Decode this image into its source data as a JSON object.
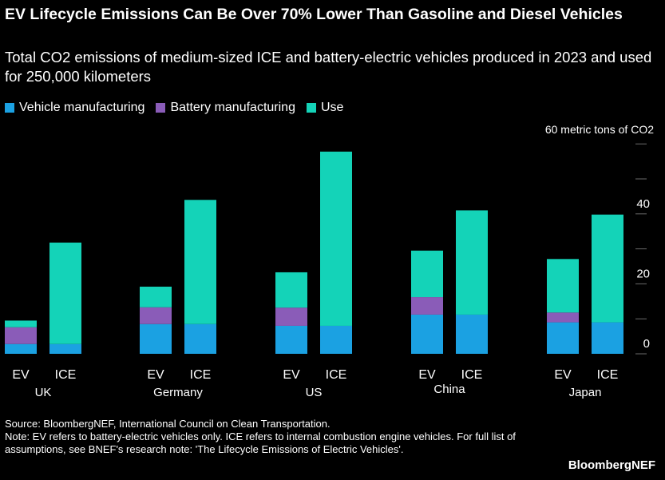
{
  "title": "EV Lifecycle Emissions Can Be Over 70% Lower Than Gasoline and Diesel Vehicles",
  "subtitle": "Total CO2 emissions of medium-sized ICE and battery-electric vehicles produced in 2023 and used for 250,000 kilometers",
  "unit_label": "60 metric tons of CO2",
  "footer": {
    "source": "Source: BloombergNEF, International Council on Clean Transportation.",
    "note": "Note: EV refers to battery-electric vehicles only. ICE refers to internal combustion engine vehicles. For full list of assumptions, see BNEF's research note: 'The Lifecycle Emissions of Electric Vehicles'."
  },
  "brand": "BloombergNEF",
  "colors": {
    "background": "#000000",
    "vehicle": "#1ba1e2",
    "battery": "#8a5cb8",
    "use": "#14d3b8",
    "grid": "#6a6a6a"
  },
  "chart_data": {
    "type": "bar",
    "stacked": true,
    "ylim": [
      0,
      60
    ],
    "yticks": [
      0,
      20,
      40
    ],
    "grid": false,
    "legend_position": "top-left",
    "groups": [
      {
        "name": "UK",
        "bars": [
          "EV",
          "ICE"
        ]
      },
      {
        "name": "Germany",
        "bars": [
          "EV",
          "ICE"
        ]
      },
      {
        "name": "US",
        "bars": [
          "EV",
          "ICE"
        ]
      },
      {
        "name": "China",
        "bars": [
          "EV",
          "ICE"
        ]
      },
      {
        "name": "Japan",
        "bars": [
          "EV",
          "ICE"
        ]
      }
    ],
    "series": [
      {
        "name": "Vehicle manufacturing",
        "color_key": "vehicle",
        "values": [
          2.8,
          2.8,
          8.5,
          8.5,
          8.0,
          8.0,
          11.2,
          11.2,
          9.0,
          9.0
        ]
      },
      {
        "name": "Battery manufacturing",
        "color_key": "battery",
        "values": [
          4.8,
          0,
          4.8,
          0,
          5.2,
          0,
          5.0,
          0,
          2.8,
          0
        ]
      },
      {
        "name": "Use",
        "color_key": "use",
        "values": [
          1.9,
          29.0,
          5.9,
          35.5,
          10.1,
          49.8,
          13.3,
          29.8,
          15.3,
          30.8
        ]
      }
    ]
  }
}
